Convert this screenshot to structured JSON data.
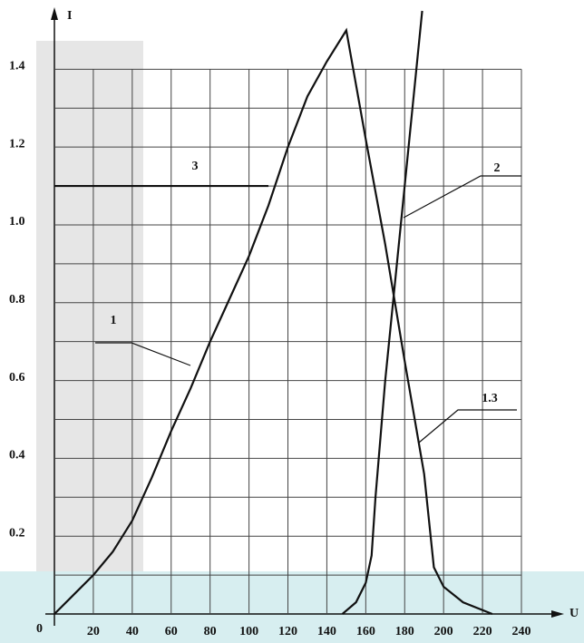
{
  "chart_data": {
    "type": "line",
    "x_label": "U",
    "y_label": "I",
    "origin_label": "0",
    "xlim": [
      0,
      240
    ],
    "ylim": [
      0,
      1.55
    ],
    "xticks": [
      20,
      40,
      60,
      80,
      100,
      120,
      140,
      160,
      180,
      200,
      220,
      240
    ],
    "yticks": [
      0.2,
      0.4,
      0.6,
      0.8,
      {
        "value": 1,
        "label": "1.0"
      },
      1.2,
      1.4
    ],
    "y_minor_ticks": [
      0.1,
      0.3,
      0.5,
      0.7,
      0.9,
      1.1,
      1.3
    ],
    "grid": true,
    "series": [
      {
        "color": "#111111",
        "x": [
          0,
          10,
          20,
          30,
          40,
          50,
          60,
          70,
          80,
          90,
          100,
          110,
          120,
          130,
          140,
          150,
          160,
          170,
          180,
          190,
          195,
          200,
          210,
          225
        ],
        "y": [
          0,
          0.05,
          0.1,
          0.16,
          0.24,
          0.35,
          0.47,
          0.58,
          0.7,
          0.81,
          0.92,
          1.05,
          1.2,
          1.33,
          1.42,
          1.5,
          1.22,
          0.95,
          0.65,
          0.36,
          0.12,
          0.07,
          0.03,
          0
        ]
      },
      {
        "color": "#111111",
        "x": [
          148,
          155,
          160,
          163,
          165,
          170,
          175,
          180,
          185,
          189
        ],
        "y": [
          0,
          0.03,
          0.08,
          0.15,
          0.3,
          0.6,
          0.85,
          1.1,
          1.35,
          1.55
        ]
      },
      {
        "color": "#111111",
        "x": [
          0,
          110
        ],
        "y": [
          1.1,
          1.1
        ]
      }
    ],
    "annotations": [
      "1",
      "2",
      "3",
      "1.3"
    ]
  }
}
